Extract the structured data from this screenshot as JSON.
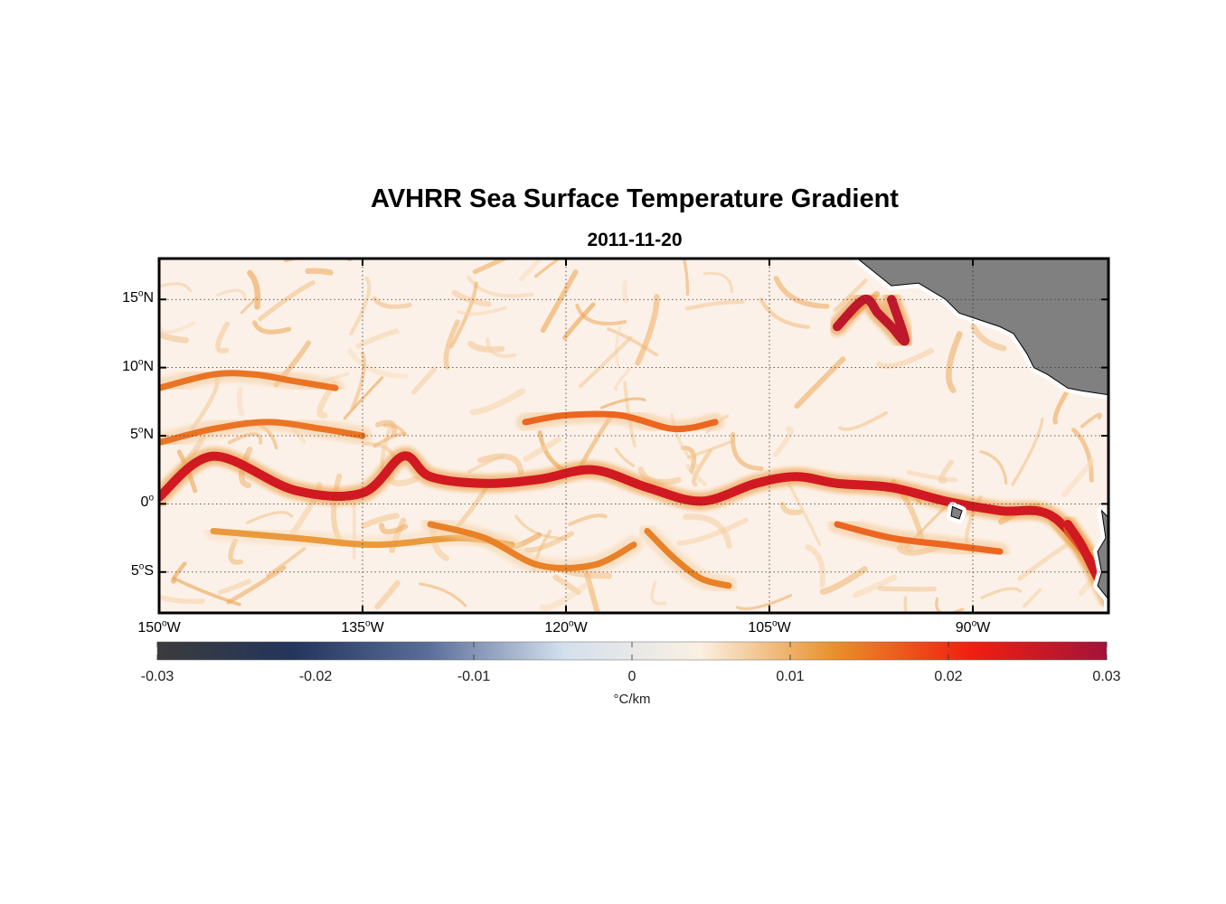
{
  "title": "AVHRR Sea Surface Temperature Gradient",
  "subtitle": "2011-11-20",
  "map": {
    "lon_range": [
      -150,
      -80
    ],
    "lat_range": [
      -8,
      18
    ],
    "grid": true,
    "land_color": "#808080",
    "lat_ticks": [
      {
        "value": 15,
        "num": "15",
        "hemi": "N"
      },
      {
        "value": 10,
        "num": "10",
        "hemi": "N"
      },
      {
        "value": 5,
        "num": "5",
        "hemi": "N"
      },
      {
        "value": 0,
        "num": "0",
        "hemi": ""
      },
      {
        "value": -5,
        "num": "5",
        "hemi": "S"
      }
    ],
    "lon_ticks": [
      {
        "value": -150,
        "num": "150",
        "hemi": "W"
      },
      {
        "value": -135,
        "num": "135",
        "hemi": "W"
      },
      {
        "value": -120,
        "num": "120",
        "hemi": "W"
      },
      {
        "value": -105,
        "num": "105",
        "hemi": "W"
      },
      {
        "value": -90,
        "num": "90",
        "hemi": "W"
      }
    ]
  },
  "colorbar": {
    "min": -0.03,
    "max": 0.03,
    "ticks": [
      "-0.03",
      "-0.02",
      "-0.01",
      "0",
      "0.01",
      "0.02",
      "0.03"
    ],
    "unit": "°C/km",
    "colors": [
      "#3b3b3b",
      "#23355c",
      "#5a6e9a",
      "#d4e0ec",
      "#fbf0e2",
      "#e8902a",
      "#f21e10",
      "#a3133a"
    ]
  },
  "chart_data": {
    "type": "heatmap",
    "title": "AVHRR Sea Surface Temperature Gradient",
    "subtitle": "2011-11-20",
    "x_range": [
      -150,
      -80
    ],
    "y_range": [
      -8,
      18
    ],
    "value_range": [
      -0.03,
      0.03
    ],
    "value_unit": "°C/km",
    "features": [
      {
        "lon": [
          -150,
          -146,
          -140,
          -135,
          -132,
          -130,
          -126,
          -122,
          -118,
          -114,
          -110,
          -106,
          -103,
          -100,
          -96,
          -92,
          -88,
          -84,
          -80
        ],
        "lat": [
          0.5,
          3.5,
          1,
          0.8,
          3.5,
          2,
          1.5,
          1.8,
          2.5,
          1.2,
          0.2,
          1.5,
          2,
          1.5,
          1.2,
          0.2,
          -0.5,
          -1,
          -6
        ],
        "value": 0.025
      },
      {
        "lon": [
          -150,
          -146,
          -142,
          -138,
          -135
        ],
        "lat": [
          4.5,
          5.5,
          6,
          5.5,
          5
        ],
        "value": 0.015
      },
      {
        "lon": [
          -150,
          -146,
          -143,
          -140,
          -137
        ],
        "lat": [
          8.5,
          9.5,
          9.5,
          9,
          8.5
        ],
        "value": 0.015
      },
      {
        "lon": [
          -123,
          -120,
          -116,
          -112,
          -109
        ],
        "lat": [
          6,
          6.5,
          6.5,
          5.5,
          6
        ],
        "value": 0.016
      },
      {
        "lon": [
          -100,
          -98,
          -97,
          -96,
          -95,
          -96
        ],
        "lat": [
          13,
          15,
          14,
          13,
          12,
          15
        ],
        "value": 0.027
      },
      {
        "lon": [
          -146,
          -140,
          -134,
          -128,
          -124
        ],
        "lat": [
          -2,
          -2.5,
          -3,
          -2.5,
          -3
        ],
        "value": 0.012
      },
      {
        "lon": [
          -130,
          -126,
          -122,
          -118,
          -115
        ],
        "lat": [
          -1.5,
          -2.5,
          -4.5,
          -4.5,
          -3
        ],
        "value": 0.014
      },
      {
        "lon": [
          -114,
          -112,
          -110,
          -108
        ],
        "lat": [
          -2,
          -4,
          -5.5,
          -6
        ],
        "value": 0.014
      },
      {
        "lon": [
          -100,
          -96,
          -92,
          -88
        ],
        "lat": [
          -1.5,
          -2.5,
          -3,
          -3.5
        ],
        "value": 0.016
      },
      {
        "lon": [
          -83,
          -82,
          -81,
          -80
        ],
        "lat": [
          -1.5,
          -3,
          -5,
          -7
        ],
        "value": 0.025
      }
    ]
  }
}
